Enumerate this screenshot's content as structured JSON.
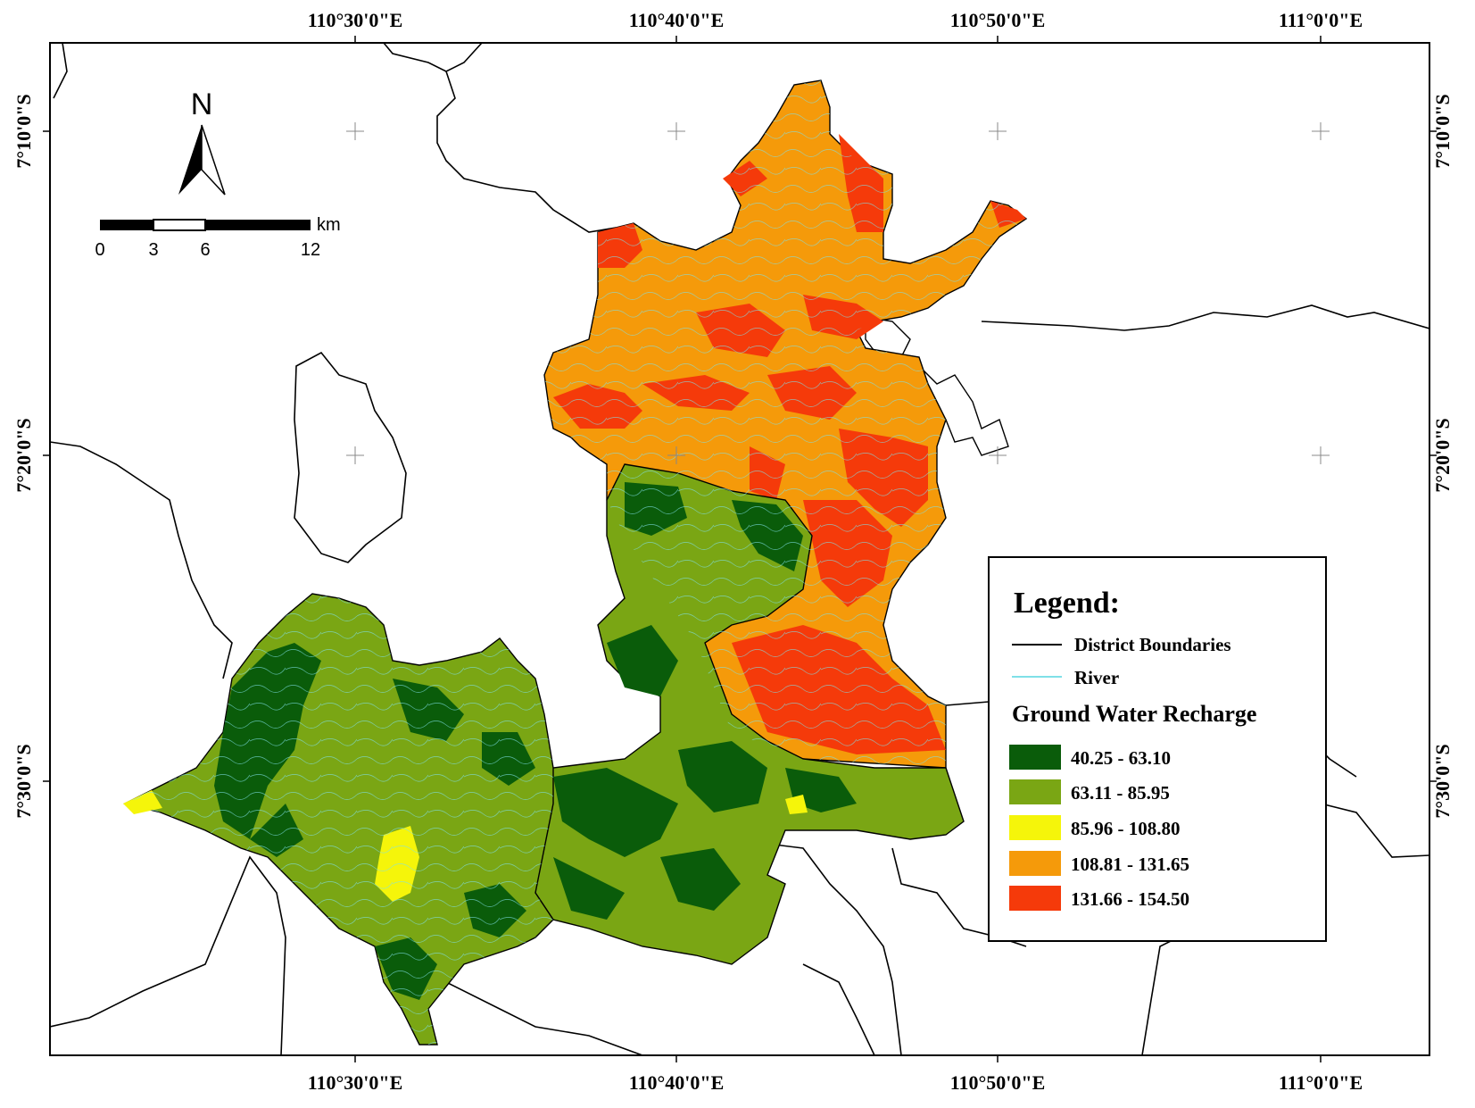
{
  "map": {
    "top_longitude_labels": [
      "110°30'0\"E",
      "110°40'0\"E",
      "110°50'0\"E",
      "111°0'0\"E"
    ],
    "bottom_longitude_labels": [
      "110°30'0\"E",
      "110°40'0\"E",
      "110°50'0\"E",
      "111°0'0\"E"
    ],
    "left_latitude_labels": [
      "7°10'0\"S",
      "7°20'0\"S",
      "7°30'0\"S"
    ],
    "right_latitude_labels": [
      "7°10'0\"S",
      "7°20'0\"S",
      "7°30'0\"S"
    ]
  },
  "north_arrow": {
    "letter": "N",
    "icon": "north-arrow-icon"
  },
  "scale_bar": {
    "unit": "km",
    "ticks": [
      "0",
      "3",
      "6",
      "12"
    ]
  },
  "legend": {
    "title": "Legend:",
    "lines": [
      {
        "label": "District Boundaries",
        "color": "#000000"
      },
      {
        "label": "River",
        "color": "#7fe0e8"
      }
    ],
    "recharge_title": "Ground Water Recharge",
    "classes": [
      {
        "label": "40.25 - 63.10",
        "color": "#0a5c0a"
      },
      {
        "label": "63.11 - 85.95",
        "color": "#7aa614"
      },
      {
        "label": "85.96 - 108.80",
        "color": "#f5f50a"
      },
      {
        "label": "108.81 - 131.65",
        "color": "#f59a0a"
      },
      {
        "label": "131.66 - 154.50",
        "color": "#f53a0a"
      }
    ]
  }
}
